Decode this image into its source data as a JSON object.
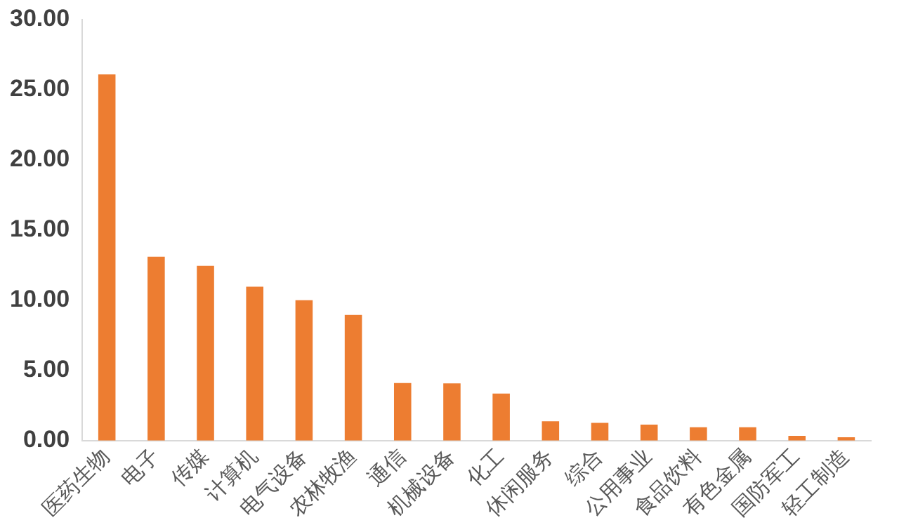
{
  "chart_data": {
    "type": "bar",
    "categories": [
      "医药生物",
      "电子",
      "传媒",
      "计算机",
      "电气设备",
      "农林牧渔",
      "通信",
      "机械设备",
      "化工",
      "休闲服务",
      "综合",
      "公用事业",
      "食品饮料",
      "有色金属",
      "国防军工",
      "轻工制造"
    ],
    "values": [
      26.1,
      13.1,
      12.45,
      10.97,
      10.0,
      8.95,
      4.1,
      4.08,
      3.35,
      1.37,
      1.26,
      1.14,
      0.95,
      0.95,
      0.34,
      0.23
    ],
    "color": "#ed7d31",
    "ylim": [
      0,
      30
    ],
    "yticks": [
      {
        "value": 0,
        "label": "0.00"
      },
      {
        "value": 5,
        "label": "5.00"
      },
      {
        "value": 10,
        "label": "10.00"
      },
      {
        "value": 15,
        "label": "15.00"
      },
      {
        "value": 20,
        "label": "20.00"
      },
      {
        "value": 25,
        "label": "25.00"
      },
      {
        "value": 30,
        "label": "30.00"
      }
    ],
    "grid": false,
    "legend": false
  }
}
